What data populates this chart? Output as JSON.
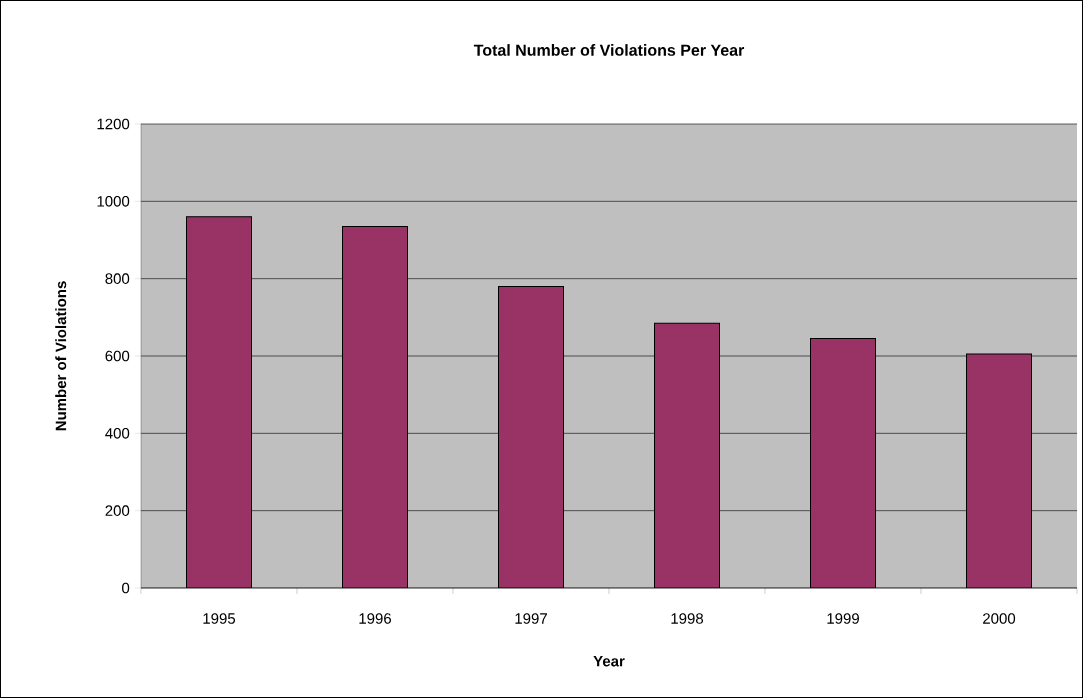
{
  "chart_data": {
    "type": "bar",
    "title": "Total Number of Violations Per Year",
    "xlabel": "Year",
    "ylabel": "Number of Violations",
    "categories": [
      "1995",
      "1996",
      "1997",
      "1998",
      "1999",
      "2000"
    ],
    "values": [
      960,
      935,
      780,
      685,
      645,
      605
    ],
    "color": "#993366",
    "ylim": [
      0,
      1200
    ],
    "yticks": [
      0,
      200,
      400,
      600,
      800,
      1000,
      1200
    ],
    "grid": "y"
  }
}
